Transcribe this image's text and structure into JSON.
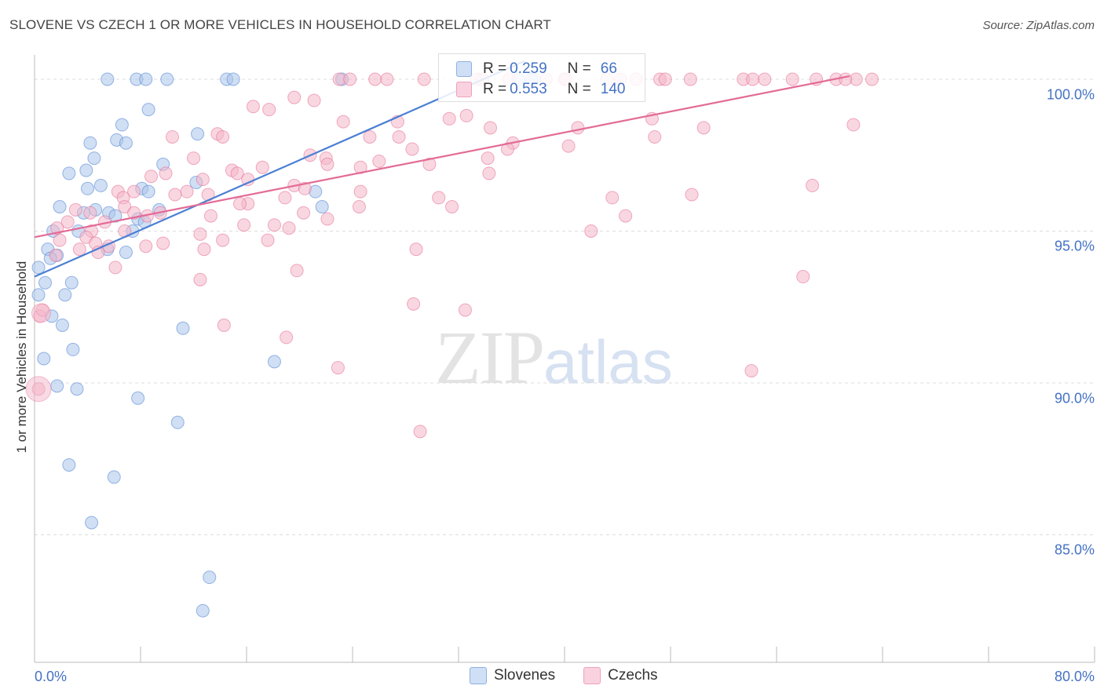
{
  "title": "SLOVENE VS CZECH 1 OR MORE VEHICLES IN HOUSEHOLD CORRELATION CHART",
  "source": "Source: ZipAtlas.com",
  "watermark": {
    "zip": "ZIP",
    "atlas": "atlas"
  },
  "legend_box": {
    "rows": [
      {
        "r_label": "R = ",
        "r_value": "0.259",
        "n_label": "N = ",
        "n_value": "66",
        "color": "#a9c4ea"
      },
      {
        "r_label": "R = ",
        "r_value": "0.553",
        "n_label": "N = ",
        "n_value": "140",
        "color": "#f4b6c9"
      }
    ]
  },
  "legend_bottom": [
    {
      "label": "Slovenes",
      "color": "#a9c4ea"
    },
    {
      "label": "Czechs",
      "color": "#f4b6c9"
    }
  ],
  "chart_data": {
    "type": "scatter",
    "title": "SLOVENE VS CZECH 1 OR MORE VEHICLES IN HOUSEHOLD CORRELATION CHART",
    "xlabel": "",
    "ylabel": "1 or more Vehicles in Household",
    "xlim": [
      0,
      80
    ],
    "ylim": [
      80.8,
      100.8
    ],
    "x_tick_labels": [
      "0.0%",
      "80.0%"
    ],
    "y_ticks": [
      85,
      90,
      95,
      100
    ],
    "y_tick_labels": [
      "85.0%",
      "90.0%",
      "95.0%",
      "100.0%"
    ],
    "grid": true,
    "legend_position": "top-center",
    "series": [
      {
        "name": "Slovenes",
        "color": "#4a7fd4",
        "fill": "#a9c4ea",
        "trend": {
          "x": [
            0,
            37
          ],
          "y": [
            93.5,
            100.6
          ]
        },
        "points": [
          [
            5.5,
            100
          ],
          [
            7.7,
            100
          ],
          [
            8.4,
            100
          ],
          [
            10,
            100
          ],
          [
            14.5,
            100
          ],
          [
            15,
            100
          ],
          [
            23.2,
            100
          ],
          [
            36.5,
            100
          ],
          [
            37.7,
            100
          ],
          [
            37.5,
            100
          ],
          [
            8.6,
            99
          ],
          [
            6.6,
            98.5
          ],
          [
            4.2,
            97.9
          ],
          [
            6.2,
            98
          ],
          [
            6.9,
            97.9
          ],
          [
            12.3,
            98.2
          ],
          [
            4.5,
            97.4
          ],
          [
            9.7,
            97.2
          ],
          [
            2.6,
            96.9
          ],
          [
            3.9,
            97
          ],
          [
            4,
            96.4
          ],
          [
            5,
            96.5
          ],
          [
            8.1,
            96.4
          ],
          [
            8.6,
            96.3
          ],
          [
            12.2,
            96.6
          ],
          [
            21.2,
            96.3
          ],
          [
            1.9,
            95.8
          ],
          [
            4.6,
            95.7
          ],
          [
            5.6,
            95.6
          ],
          [
            6.1,
            95.5
          ],
          [
            3.7,
            95.6
          ],
          [
            7.8,
            95.4
          ],
          [
            9.4,
            95.7
          ],
          [
            21.7,
            95.8
          ],
          [
            1.4,
            95
          ],
          [
            3.3,
            95
          ],
          [
            7.4,
            95
          ],
          [
            8.3,
            95.3
          ],
          [
            1,
            94.4
          ],
          [
            1.7,
            94.2
          ],
          [
            5.5,
            94.4
          ],
          [
            6.9,
            94.3
          ],
          [
            1.2,
            94.1
          ],
          [
            0.3,
            93.8
          ],
          [
            0.8,
            93.3
          ],
          [
            2.8,
            93.3
          ],
          [
            0.3,
            92.9
          ],
          [
            2.3,
            92.9
          ],
          [
            1.3,
            92.2
          ],
          [
            2.1,
            91.9
          ],
          [
            11.2,
            91.8
          ],
          [
            2.9,
            91.1
          ],
          [
            0.7,
            90.8
          ],
          [
            18.1,
            90.7
          ],
          [
            1.7,
            89.9
          ],
          [
            3.2,
            89.8
          ],
          [
            7.8,
            89.5
          ],
          [
            10.8,
            88.7
          ],
          [
            2.6,
            87.3
          ],
          [
            6,
            86.9
          ],
          [
            4.3,
            85.4
          ],
          [
            13.2,
            83.6
          ],
          [
            12.7,
            82.5
          ]
        ]
      },
      {
        "name": "Czechs",
        "color": "#e36b96",
        "fill": "#f4b6c9",
        "trend": {
          "x": [
            0,
            61.5
          ],
          "y": [
            94.8,
            100.1
          ]
        },
        "points": [
          [
            23,
            100
          ],
          [
            23.8,
            100
          ],
          [
            25.7,
            100
          ],
          [
            26.6,
            100
          ],
          [
            29.4,
            100
          ],
          [
            33.4,
            100
          ],
          [
            33.8,
            100
          ],
          [
            35.8,
            100
          ],
          [
            38.6,
            100
          ],
          [
            40,
            100
          ],
          [
            40.1,
            100
          ],
          [
            43.2,
            100
          ],
          [
            44.2,
            100
          ],
          [
            45.4,
            100
          ],
          [
            47.2,
            100
          ],
          [
            47.6,
            100
          ],
          [
            49.5,
            100
          ],
          [
            53.5,
            100
          ],
          [
            54.2,
            100
          ],
          [
            55.1,
            100
          ],
          [
            57.2,
            100
          ],
          [
            59,
            100
          ],
          [
            60.5,
            100
          ],
          [
            62,
            100
          ],
          [
            63.2,
            100
          ],
          [
            61.2,
            100
          ],
          [
            19.6,
            99.4
          ],
          [
            21.1,
            99.3
          ],
          [
            16.5,
            99.1
          ],
          [
            17.7,
            99
          ],
          [
            31.3,
            98.7
          ],
          [
            32.6,
            98.8
          ],
          [
            46.6,
            98.7
          ],
          [
            23.3,
            98.6
          ],
          [
            27.4,
            98.6
          ],
          [
            34.4,
            98.4
          ],
          [
            41,
            98.4
          ],
          [
            50.5,
            98.4
          ],
          [
            61.8,
            98.5
          ],
          [
            13.8,
            98.2
          ],
          [
            10.4,
            98.1
          ],
          [
            14.2,
            98.1
          ],
          [
            25.3,
            98.1
          ],
          [
            27.5,
            98.1
          ],
          [
            36.1,
            97.9
          ],
          [
            46.8,
            98.1
          ],
          [
            35.7,
            97.7
          ],
          [
            40.3,
            97.8
          ],
          [
            28.5,
            97.7
          ],
          [
            20.8,
            97.5
          ],
          [
            22,
            97.4
          ],
          [
            12,
            97.4
          ],
          [
            17.2,
            97.1
          ],
          [
            24.6,
            97.1
          ],
          [
            26,
            97.3
          ],
          [
            29.8,
            97.2
          ],
          [
            34.2,
            97.4
          ],
          [
            22.1,
            97.2
          ],
          [
            14.9,
            97.0
          ],
          [
            15.3,
            96.9
          ],
          [
            34.3,
            96.9
          ],
          [
            9.9,
            96.9
          ],
          [
            8.8,
            96.8
          ],
          [
            16.1,
            96.7
          ],
          [
            12.7,
            96.7
          ],
          [
            19.6,
            96.5
          ],
          [
            20.4,
            96.4
          ],
          [
            11.5,
            96.3
          ],
          [
            24.6,
            96.3
          ],
          [
            6.3,
            96.3
          ],
          [
            7.5,
            96.3
          ],
          [
            6.7,
            96.1
          ],
          [
            13.1,
            96.2
          ],
          [
            18.9,
            96.1
          ],
          [
            16.1,
            95.9
          ],
          [
            6.8,
            95.8
          ],
          [
            15.5,
            95.9
          ],
          [
            10.6,
            96.2
          ],
          [
            30.5,
            96.1
          ],
          [
            43.6,
            96.1
          ],
          [
            58.7,
            96.5
          ],
          [
            49.6,
            96.2
          ],
          [
            24.5,
            95.8
          ],
          [
            7.5,
            95.6
          ],
          [
            8.5,
            95.5
          ],
          [
            3.1,
            95.7
          ],
          [
            4.2,
            95.6
          ],
          [
            13.3,
            95.5
          ],
          [
            20.3,
            95.6
          ],
          [
            22.1,
            95.4
          ],
          [
            31.5,
            95.8
          ],
          [
            44.6,
            95.5
          ],
          [
            2.5,
            95.3
          ],
          [
            9.5,
            95.6
          ],
          [
            5.3,
            95.3
          ],
          [
            6.8,
            95.0
          ],
          [
            1.7,
            95.1
          ],
          [
            4.3,
            95.0
          ],
          [
            12.5,
            94.9
          ],
          [
            15.8,
            95.2
          ],
          [
            18.1,
            95.2
          ],
          [
            19.2,
            95.1
          ],
          [
            42,
            95.0
          ],
          [
            3.9,
            94.8
          ],
          [
            4.6,
            94.6
          ],
          [
            5.6,
            94.5
          ],
          [
            1.9,
            94.7
          ],
          [
            9.7,
            94.6
          ],
          [
            14.2,
            94.7
          ],
          [
            17.6,
            94.7
          ],
          [
            3.4,
            94.4
          ],
          [
            8.4,
            94.5
          ],
          [
            12.8,
            94.4
          ],
          [
            4.8,
            94.3
          ],
          [
            28.8,
            94.4
          ],
          [
            6.1,
            93.8
          ],
          [
            1.6,
            94.2
          ],
          [
            19.8,
            93.7
          ],
          [
            12.5,
            93.4
          ],
          [
            58,
            93.5
          ],
          [
            28.6,
            92.6
          ],
          [
            32.5,
            92.4
          ],
          [
            0.4,
            92.2
          ],
          [
            0.6,
            92.4
          ],
          [
            14.3,
            91.9
          ],
          [
            19,
            91.5
          ],
          [
            22.9,
            90.5
          ],
          [
            54.1,
            90.4
          ],
          [
            0.3,
            89.8
          ],
          [
            29.1,
            88.4
          ]
        ]
      }
    ]
  }
}
